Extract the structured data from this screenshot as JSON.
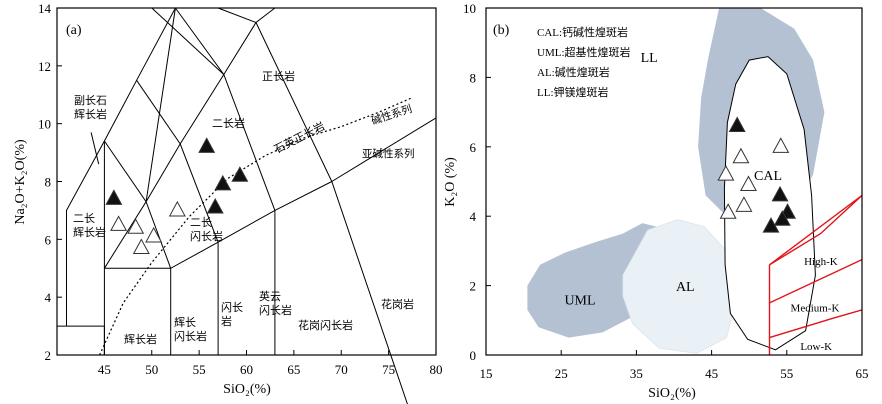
{
  "chart_data": [
    {
      "type": "scatter",
      "panel_label": "(a)",
      "xlabel": "SiO₂(%)",
      "ylabel": "Na₂O+K₂O(%)",
      "xlim": [
        40,
        80
      ],
      "ylim": [
        2,
        14
      ],
      "xticks": [
        45,
        50,
        55,
        60,
        65,
        70,
        75,
        80
      ],
      "yticks": [
        2,
        4,
        6,
        8,
        10,
        12,
        14
      ],
      "field_labels": {
        "zhengchang": "正长岩",
        "fuchang": "副长石\n辉长岩",
        "erchang": "二长岩",
        "shiying": "石英正长岩",
        "jianxing": "碱性系列",
        "yajian": "亚碱性系列",
        "erchanghui": "二长\n辉长岩",
        "erchangshan": "二长\n闪长岩",
        "huichang": "辉长岩",
        "huichangshan": "辉长\n闪长岩",
        "shanchang": "闪长\n岩",
        "yingyun": "英云\n闪长岩",
        "huagangshan": "花岗闪长岩",
        "huagang": "花岗岩"
      },
      "series": [
        {
          "marker": "filled-triangle",
          "points": [
            [
              46,
              7.4
            ],
            [
              55.8,
              9.2
            ],
            [
              57.5,
              7.9
            ],
            [
              59.3,
              8.2
            ],
            [
              56.7,
              7.1
            ]
          ]
        },
        {
          "marker": "open-triangle",
          "points": [
            [
              46.5,
              6.5
            ],
            [
              48.3,
              6.4
            ],
            [
              48.9,
              5.7
            ],
            [
              50.2,
              6.1
            ],
            [
              52.7,
              7.0
            ]
          ]
        }
      ]
    },
    {
      "type": "scatter",
      "panel_label": "(b)",
      "xlabel": "SiO₂(%)",
      "ylabel": "K₂O (%)",
      "xlim": [
        15,
        65
      ],
      "ylim": [
        0,
        10
      ],
      "xticks": [
        15,
        25,
        35,
        45,
        55,
        65
      ],
      "yticks": [
        0,
        2,
        4,
        6,
        8,
        10
      ],
      "legend": [
        "CAL:钙碱性煌斑岩",
        "UML:超基性煌斑岩",
        "AL:碱性煌斑岩",
        "LL:钾镁煌斑岩"
      ],
      "field_labels": {
        "LL": "LL",
        "CAL": "CAL",
        "AL": "AL",
        "UML": "UML",
        "high_k": "High-K",
        "medium_k": "Medium-K",
        "low_k": "Low-K"
      },
      "colors": {
        "LL": "#b4c1d3",
        "UML": "#b4c1d3",
        "AL": "#e9f0f6",
        "K_lines": "#e0161c"
      },
      "series": [
        {
          "marker": "filled-triangle",
          "points": [
            [
              48.4,
              6.6
            ],
            [
              54.1,
              4.6
            ],
            [
              55.1,
              4.1
            ],
            [
              54.4,
              3.9
            ],
            [
              52.9,
              3.7
            ]
          ]
        },
        {
          "marker": "open-triangle",
          "points": [
            [
              54.2,
              6.0
            ],
            [
              48.9,
              5.7
            ],
            [
              46.9,
              5.2
            ],
            [
              49.9,
              4.9
            ],
            [
              49.3,
              4.3
            ],
            [
              47.2,
              4.1
            ]
          ]
        }
      ]
    }
  ]
}
